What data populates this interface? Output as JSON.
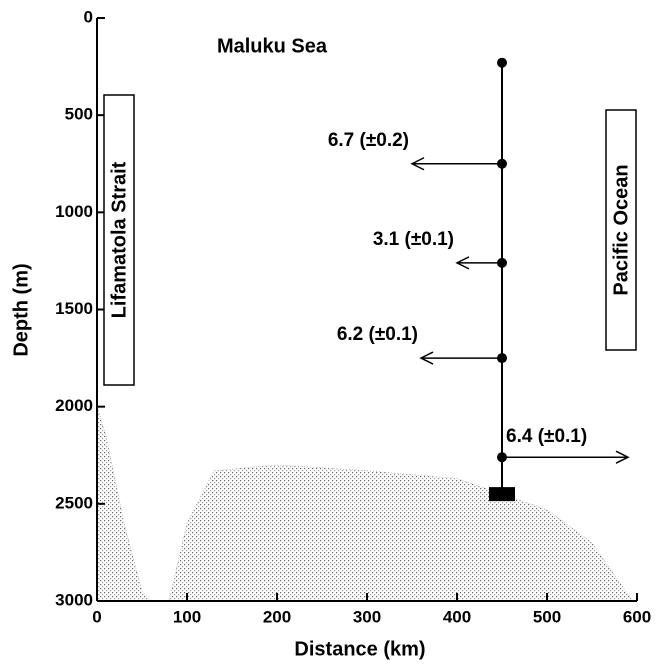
{
  "chart_data": {
    "type": "scatter",
    "x_label": "Distance (km)",
    "y_label": "Depth (m)",
    "xlim": [
      0,
      600
    ],
    "xticks": [
      0,
      100,
      200,
      300,
      400,
      500,
      600
    ],
    "ylim": [
      0,
      3000
    ],
    "yticks": [
      0,
      500,
      1000,
      1500,
      2000,
      2500,
      3000
    ],
    "y_inverted": true,
    "annotations": [
      "Maluku Sea",
      "Lifamatola Strait",
      "Pacific Ocean"
    ],
    "mooring": {
      "x": 450,
      "depths": [
        230,
        750,
        1260,
        1750,
        2260
      ],
      "anchor_depth": 2450,
      "color": "#000000"
    },
    "flows": [
      {
        "depth": 750,
        "value": 6.7,
        "error": 0.2,
        "label": "6.7 (±0.2)",
        "x_end": 350
      },
      {
        "depth": 1260,
        "value": 3.1,
        "error": 0.1,
        "label": "3.1 (±0.1)",
        "x_end": 400
      },
      {
        "depth": 1750,
        "value": 6.2,
        "error": 0.1,
        "label": "6.2 (±0.1)",
        "x_end": 360
      },
      {
        "depth": 2260,
        "value": 6.4,
        "error": 0.1,
        "label": "6.4 (±0.1)",
        "x_end": 590
      }
    ],
    "bathymetry": {
      "x": [
        0,
        10,
        30,
        50,
        60,
        80,
        100,
        130,
        200,
        300,
        400,
        450,
        500,
        550,
        580,
        595
      ],
      "depths": [
        2000,
        2150,
        2600,
        2950,
        3000,
        3000,
        2600,
        2330,
        2300,
        2330,
        2370,
        2450,
        2530,
        2700,
        2900,
        3000
      ],
      "color": "#777777"
    }
  }
}
